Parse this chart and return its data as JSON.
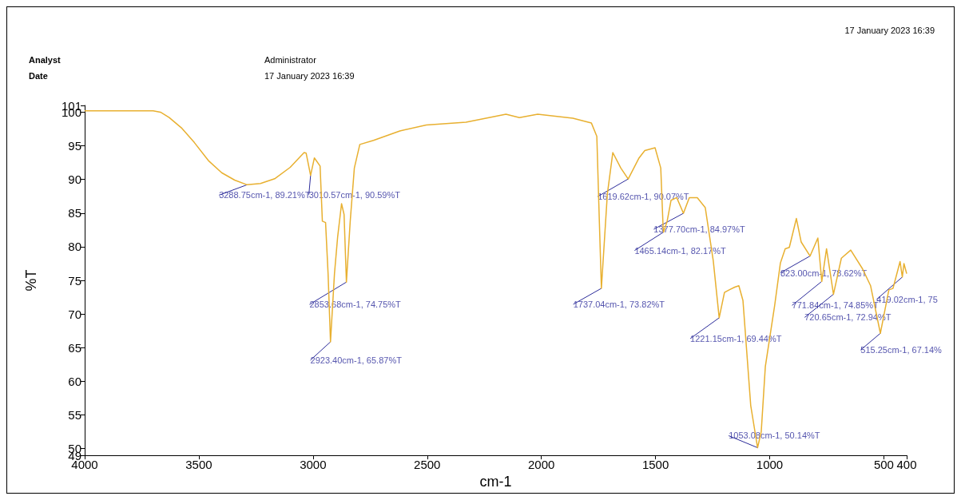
{
  "chart_data": {
    "type": "line",
    "xlabel": "cm-1",
    "ylabel": "%T",
    "xlim": [
      4000,
      400
    ],
    "xticks": [
      4000,
      3500,
      3000,
      2500,
      2000,
      1500,
      1000,
      500,
      400
    ],
    "ylim": [
      49,
      101
    ],
    "yticks": [
      49,
      50,
      55,
      60,
      65,
      70,
      75,
      80,
      85,
      90,
      95,
      100,
      101
    ],
    "grid": false,
    "marker": "none",
    "line_style": "solid",
    "series": [
      {
        "color": "#e8b030",
        "x": [
          4000,
          3900,
          3800,
          3700,
          3668,
          3630,
          3574,
          3520,
          3458,
          3400,
          3343,
          3288.75,
          3230,
          3168,
          3100,
          3039,
          3030,
          3010.57,
          2994,
          2969,
          2959,
          2945,
          2934,
          2923.4,
          2906,
          2892,
          2875,
          2864,
          2853.68,
          2837,
          2819,
          2795,
          2735,
          2620,
          2504,
          2330,
          2155,
          2096,
          2016,
          1862,
          1781,
          1757,
          1746,
          1737.04,
          1711,
          1687,
          1652,
          1619.62,
          1572,
          1547,
          1502,
          1477,
          1467,
          1465.14,
          1449,
          1432,
          1407,
          1377.7,
          1352,
          1317,
          1282,
          1247,
          1221.15,
          1198,
          1177,
          1153,
          1135,
          1117,
          1083,
          1053.08,
          1037,
          1019,
          978,
          953,
          932,
          914,
          883,
          862,
          823,
          789,
          771.84,
          751,
          720.65,
          686,
          645,
          593,
          558,
          515.25,
          478,
          460,
          429,
          419.02,
          412,
          400
        ],
        "values": [
          100.2,
          100.2,
          100.2,
          100.2,
          100.0,
          99.2,
          97.6,
          95.5,
          92.8,
          91.0,
          89.9,
          89.21,
          89.4,
          90.1,
          91.8,
          94.0,
          93.9,
          90.59,
          93.2,
          92.0,
          83.8,
          83.6,
          76.0,
          65.87,
          76.0,
          81.5,
          86.4,
          84.8,
          74.75,
          83.8,
          91.7,
          95.2,
          95.8,
          97.2,
          98.1,
          98.5,
          99.7,
          99.2,
          99.7,
          99.1,
          98.4,
          96.4,
          83.8,
          73.82,
          87.8,
          94.0,
          91.7,
          90.07,
          93.2,
          94.3,
          94.7,
          91.7,
          83.1,
          82.17,
          83.8,
          86.9,
          87.3,
          84.97,
          87.3,
          87.3,
          85.8,
          77.9,
          69.44,
          73.2,
          73.6,
          74.0,
          74.2,
          72.0,
          56.4,
          50.14,
          52.5,
          62.2,
          71.3,
          77.6,
          79.7,
          79.9,
          84.2,
          80.7,
          78.62,
          81.3,
          74.85,
          79.7,
          72.94,
          78.3,
          79.5,
          76.7,
          74.2,
          67.14,
          73.6,
          73.8,
          77.8,
          75.5,
          77.5,
          76.0
        ]
      }
    ],
    "annotations": [
      "Analyst",
      "Administrator",
      "Date",
      "17 January 2023 16:39",
      "17 January 2023 16:39",
      {
        "text": "3288.75cm-1, 89.21%T",
        "x": 3288.75,
        "y": 89.21
      },
      {
        "text": "3010.57cm-1, 90.59%T",
        "x": 3010.57,
        "y": 90.59
      },
      {
        "text": "2923.40cm-1, 65.87%T",
        "x": 2923.4,
        "y": 65.87
      },
      {
        "text": "2853.68cm-1, 74.75%T",
        "x": 2853.68,
        "y": 74.75
      },
      {
        "text": "1737.04cm-1, 73.82%T",
        "x": 1737.04,
        "y": 73.82
      },
      {
        "text": "1619.62cm-1, 90.07%T",
        "x": 1619.62,
        "y": 90.07
      },
      {
        "text": "1465.14cm-1, 82.17%T",
        "x": 1465.14,
        "y": 82.17
      },
      {
        "text": "1377.70cm-1, 84.97%T",
        "x": 1377.7,
        "y": 84.97
      },
      {
        "text": "1221.15cm-1, 69.44%T",
        "x": 1221.15,
        "y": 69.44
      },
      {
        "text": "1053.08cm-1, 50.14%T",
        "x": 1053.08,
        "y": 50.14
      },
      {
        "text": "823.00cm-1, 78.62%T",
        "x": 823.0,
        "y": 78.62
      },
      {
        "text": "771.84cm-1, 74.85%T",
        "x": 771.84,
        "y": 74.85
      },
      {
        "text": "720.65cm-1, 72.94%T",
        "x": 720.65,
        "y": 72.94
      },
      {
        "text": "515.25cm-1, 67.14%",
        "x": 515.25,
        "y": 67.14
      },
      {
        "text": "419.02cm-1, 75",
        "x": 419.02,
        "y": 75.5
      }
    ]
  }
}
